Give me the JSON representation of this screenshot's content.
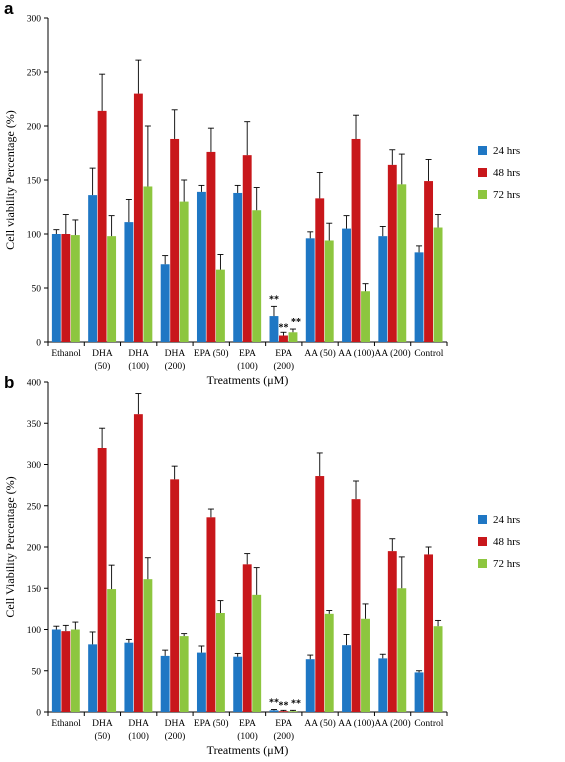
{
  "chart_data": [
    {
      "type": "bar",
      "panel": "a",
      "categories": [
        [
          "Ethanol"
        ],
        [
          "DHA",
          "(50)"
        ],
        [
          "DHA",
          "(100)"
        ],
        [
          "DHA",
          "(200)"
        ],
        [
          "EPA (50)"
        ],
        [
          "EPA",
          "(100)"
        ],
        [
          "EPA",
          "(200)"
        ],
        [
          "AA (50)"
        ],
        [
          "AA (100)"
        ],
        [
          "AA (200)"
        ],
        [
          "Control"
        ]
      ],
      "series": [
        {
          "name": "24 hrs",
          "color": "#1f77c4",
          "values": [
            100,
            136,
            111,
            72,
            139,
            138,
            24,
            96,
            105,
            98,
            83
          ],
          "errors": [
            4,
            25,
            21,
            8,
            6,
            7,
            9,
            6,
            12,
            9,
            6
          ]
        },
        {
          "name": "48 hrs",
          "color": "#c8171b",
          "values": [
            100,
            214,
            230,
            188,
            176,
            173,
            6,
            133,
            188,
            164,
            149
          ],
          "errors": [
            18,
            34,
            31,
            27,
            22,
            31,
            3,
            24,
            22,
            14,
            20
          ]
        },
        {
          "name": "72 hrs",
          "color": "#8dc63f",
          "values": [
            99,
            98,
            144,
            130,
            67,
            122,
            9,
            94,
            47,
            146,
            106
          ],
          "errors": [
            14,
            19,
            56,
            20,
            14,
            21,
            3,
            16,
            7,
            28,
            12
          ]
        }
      ],
      "significance": [
        {
          "category": 6,
          "series": 0,
          "text": "**"
        },
        {
          "category": 6,
          "series": 1,
          "text": "**"
        },
        {
          "category": 6,
          "series": 2,
          "text": "**"
        }
      ],
      "ylim": [
        0,
        300
      ],
      "yticks": [
        0,
        50,
        100,
        150,
        200,
        250,
        300
      ],
      "ylabel": "Cell viability Percentage  (%)",
      "xlabel": "Treatments (μM)",
      "legend": "right"
    },
    {
      "type": "bar",
      "panel": "b",
      "categories": [
        [
          "Ethanol"
        ],
        [
          "DHA",
          "(50)"
        ],
        [
          "DHA",
          "(100)"
        ],
        [
          "DHA",
          "(200)"
        ],
        [
          "EPA (50)"
        ],
        [
          "EPA",
          "(100)"
        ],
        [
          "EPA",
          "(200)"
        ],
        [
          "AA (50)"
        ],
        [
          "AA (100)"
        ],
        [
          "AA (200)"
        ],
        [
          "Control"
        ]
      ],
      "series": [
        {
          "name": "24 hrs",
          "color": "#1f77c4",
          "values": [
            100,
            82,
            84,
            68,
            72,
            67,
            2,
            64,
            81,
            65,
            48
          ],
          "errors": [
            4,
            15,
            4,
            7,
            8,
            4,
            1,
            5,
            13,
            5,
            2
          ]
        },
        {
          "name": "48 hrs",
          "color": "#c8171b",
          "values": [
            98,
            320,
            361,
            282,
            236,
            179,
            1,
            286,
            258,
            195,
            191
          ],
          "errors": [
            7,
            24,
            25,
            16,
            10,
            13,
            1,
            28,
            22,
            15,
            9
          ]
        },
        {
          "name": "72 hrs",
          "color": "#8dc63f",
          "values": [
            100,
            149,
            161,
            92,
            120,
            142,
            1,
            119,
            113,
            150,
            104
          ],
          "errors": [
            9,
            29,
            26,
            3,
            15,
            33,
            1,
            4,
            18,
            38,
            7
          ]
        }
      ],
      "significance": [
        {
          "category": 6,
          "series": 0,
          "text": "**"
        },
        {
          "category": 6,
          "series": 1,
          "text": "**"
        },
        {
          "category": 6,
          "series": 2,
          "text": "**"
        }
      ],
      "ylim": [
        0,
        400
      ],
      "yticks": [
        0,
        50,
        100,
        150,
        200,
        250,
        300,
        350,
        400
      ],
      "ylabel": "Cell Viability Percentage  (%)",
      "xlabel": "Treatments (μM)",
      "legend": "right"
    }
  ]
}
